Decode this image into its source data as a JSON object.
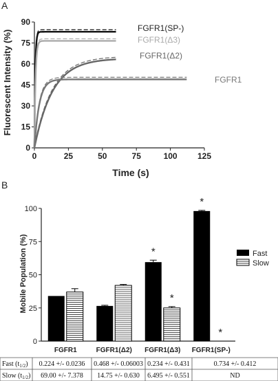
{
  "panel_a": {
    "panel_label": "A",
    "xlabel": "Time (s)",
    "ylabel": "Fluorescent Intensity (%)",
    "chart_data": {
      "type": "line",
      "xlim": [
        0,
        125
      ],
      "ylim": [
        0,
        90
      ],
      "xticks": [
        0,
        25,
        50,
        75,
        100,
        125
      ],
      "yticks": [
        0,
        15,
        30,
        45,
        60,
        75,
        90
      ],
      "xlabel": "Time (s)",
      "ylabel": "Fluorescent Intensity (%)",
      "series": [
        {
          "name": "FGFR1(SP-)",
          "color": "#111111",
          "plateau": 83,
          "k": 1.6,
          "x_end": 60
        },
        {
          "name": "FGFR1(Δ3)",
          "color": "#aaaaaa",
          "plateau": 76.5,
          "k": 1.2,
          "x_end": 60
        },
        {
          "name": "FGFR1(Δ2)",
          "color": "#666666",
          "plateau": 64,
          "k": 0.075,
          "x_end": 60
        },
        {
          "name": "FGFR1",
          "color": "#777777",
          "plateau": 49,
          "k": 0.28,
          "x_end": 112
        }
      ]
    }
  },
  "panel_b": {
    "panel_label": "B",
    "ylabel": "Mobile Population (%)",
    "legend": {
      "fast": "Fast",
      "slow": "Slow"
    },
    "chart_data": {
      "type": "bar",
      "ylim": [
        0,
        100
      ],
      "yticks": [
        0,
        25,
        50,
        75,
        100
      ],
      "ylabel": "Mobile Population (%)",
      "categories": [
        "FGFR1",
        "FGFR1(Δ2)",
        "FGFR1(Δ3)",
        "FGFR1(SP-)"
      ],
      "series": [
        {
          "name": "Fast",
          "values": [
            34,
            26.5,
            59.5,
            98
          ],
          "errors": [
            0,
            0.5,
            1.5,
            0.5
          ],
          "stars": [
            false,
            false,
            true,
            true
          ]
        },
        {
          "name": "Slow",
          "values": [
            37,
            42,
            25,
            0
          ],
          "errors": [
            2.5,
            0.7,
            1,
            0
          ],
          "stars": [
            false,
            false,
            true,
            true
          ]
        }
      ]
    },
    "table": {
      "rows": [
        {
          "label": "Fast",
          "sub": "1/2",
          "cells": [
            "0.224 +/- 0.0236",
            "0.468 +/- 0.06003",
            "0.234 +/- 0.431",
            "0.734 +/- 0.412"
          ]
        },
        {
          "label": "Slow",
          "sub": "1/2",
          "cells": [
            "69.00 +/- 7.378",
            "14.75 +/- 0.630",
            "6.495 +/- 0.551",
            "ND"
          ]
        }
      ]
    }
  }
}
